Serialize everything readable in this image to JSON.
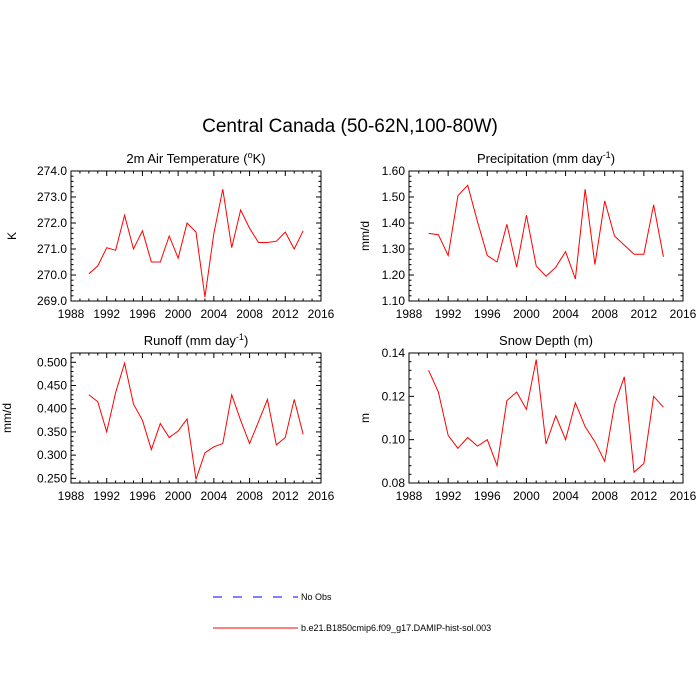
{
  "title": "Central Canada (50-62N,100-80W)",
  "legend": [
    {
      "label": "No Obs",
      "color": "#0000ff",
      "dash": true
    },
    {
      "label": "b.e21.B1850cmip6.f09_g17.DAMIP-hist-sol.003",
      "color": "#ff0000",
      "dash": false
    }
  ],
  "chart_data": [
    {
      "type": "line",
      "title": "2m Air Temperature (°K)",
      "title_main": "2m Air Temperature (",
      "title_sup": "o",
      "title_tail": "K)",
      "xlabel": "",
      "ylabel": "K",
      "xlim": [
        1988,
        2016
      ],
      "ylim": [
        269.0,
        274.0
      ],
      "xticks": [
        1988,
        1992,
        1996,
        2000,
        2004,
        2008,
        2012,
        2016
      ],
      "yticks": [
        269.0,
        270.0,
        271.0,
        272.0,
        273.0,
        274.0
      ],
      "ytick_decimals": 1,
      "x": [
        1990,
        1991,
        1992,
        1993,
        1994,
        1995,
        1996,
        1997,
        1998,
        1999,
        2000,
        2001,
        2002,
        2003,
        2004,
        2005,
        2006,
        2007,
        2008,
        2009,
        2010,
        2011,
        2012,
        2013,
        2014
      ],
      "series": [
        {
          "name": "b.e21.B1850cmip6.f09_g17.DAMIP-hist-sol.003",
          "color": "#ff0000",
          "values": [
            270.05,
            270.35,
            271.05,
            270.95,
            272.3,
            271.0,
            271.7,
            270.5,
            270.5,
            271.5,
            270.65,
            272.0,
            271.65,
            269.15,
            271.6,
            273.3,
            271.05,
            272.5,
            271.8,
            271.25,
            271.25,
            271.3,
            271.65,
            271.0,
            271.7
          ]
        }
      ]
    },
    {
      "type": "line",
      "title": "Precipitation (mm day-1)",
      "title_main": "Precipitation (mm day",
      "title_sup": "-1",
      "title_tail": ")",
      "xlabel": "",
      "ylabel": "mm/d",
      "xlim": [
        1988,
        2016
      ],
      "ylim": [
        1.1,
        1.6
      ],
      "xticks": [
        1988,
        1992,
        1996,
        2000,
        2004,
        2008,
        2012,
        2016
      ],
      "yticks": [
        1.1,
        1.2,
        1.3,
        1.4,
        1.5,
        1.6
      ],
      "ytick_decimals": 2,
      "x": [
        1990,
        1991,
        1992,
        1993,
        1994,
        1995,
        1996,
        1997,
        1998,
        1999,
        2000,
        2001,
        2002,
        2003,
        2004,
        2005,
        2006,
        2007,
        2008,
        2009,
        2010,
        2011,
        2012,
        2013,
        2014
      ],
      "series": [
        {
          "name": "b.e21.B1850cmip6.f09_g17.DAMIP-hist-sol.003",
          "color": "#ff0000",
          "values": [
            1.36,
            1.355,
            1.275,
            1.505,
            1.545,
            1.405,
            1.275,
            1.25,
            1.395,
            1.23,
            1.43,
            1.235,
            1.195,
            1.23,
            1.29,
            1.185,
            1.53,
            1.24,
            1.485,
            1.35,
            1.315,
            1.28,
            1.28,
            1.47,
            1.27
          ]
        }
      ]
    },
    {
      "type": "line",
      "title": "Runoff (mm day-1)",
      "title_main": "Runoff (mm day",
      "title_sup": "-1",
      "title_tail": ")",
      "xlabel": "",
      "ylabel": "mm/d",
      "xlim": [
        1988,
        2016
      ],
      "ylim": [
        0.24,
        0.52
      ],
      "xticks": [
        1988,
        1992,
        1996,
        2000,
        2004,
        2008,
        2012,
        2016
      ],
      "yticks": [
        0.25,
        0.3,
        0.35,
        0.4,
        0.45,
        0.5
      ],
      "ytick_decimals": 3,
      "x": [
        1990,
        1991,
        1992,
        1993,
        1994,
        1995,
        1996,
        1997,
        1998,
        1999,
        2000,
        2001,
        2002,
        2003,
        2004,
        2005,
        2006,
        2007,
        2008,
        2009,
        2010,
        2011,
        2012,
        2013,
        2014
      ],
      "series": [
        {
          "name": "b.e21.B1850cmip6.f09_g17.DAMIP-hist-sol.003",
          "color": "#ff0000",
          "values": [
            0.43,
            0.415,
            0.35,
            0.435,
            0.498,
            0.41,
            0.375,
            0.312,
            0.368,
            0.338,
            0.352,
            0.378,
            0.248,
            0.305,
            0.318,
            0.325,
            0.43,
            0.375,
            0.325,
            0.372,
            0.42,
            0.322,
            0.338,
            0.42,
            0.345
          ]
        }
      ]
    },
    {
      "type": "line",
      "title": "Snow Depth (m)",
      "title_main": "Snow Depth (m)",
      "title_sup": "",
      "title_tail": "",
      "xlabel": "",
      "ylabel": "m",
      "xlim": [
        1988,
        2016
      ],
      "ylim": [
        0.08,
        0.14
      ],
      "xticks": [
        1988,
        1992,
        1996,
        2000,
        2004,
        2008,
        2012,
        2016
      ],
      "yticks": [
        0.08,
        0.1,
        0.12,
        0.14
      ],
      "ytick_decimals": 2,
      "x": [
        1990,
        1991,
        1992,
        1993,
        1994,
        1995,
        1996,
        1997,
        1998,
        1999,
        2000,
        2001,
        2002,
        2003,
        2004,
        2005,
        2006,
        2007,
        2008,
        2009,
        2010,
        2011,
        2012,
        2013,
        2014
      ],
      "series": [
        {
          "name": "b.e21.B1850cmip6.f09_g17.DAMIP-hist-sol.003",
          "color": "#ff0000",
          "values": [
            0.132,
            0.122,
            0.102,
            0.096,
            0.101,
            0.097,
            0.1,
            0.088,
            0.118,
            0.122,
            0.114,
            0.137,
            0.098,
            0.111,
            0.1,
            0.117,
            0.106,
            0.099,
            0.09,
            0.116,
            0.129,
            0.085,
            0.089,
            0.12,
            0.115
          ]
        }
      ]
    }
  ]
}
